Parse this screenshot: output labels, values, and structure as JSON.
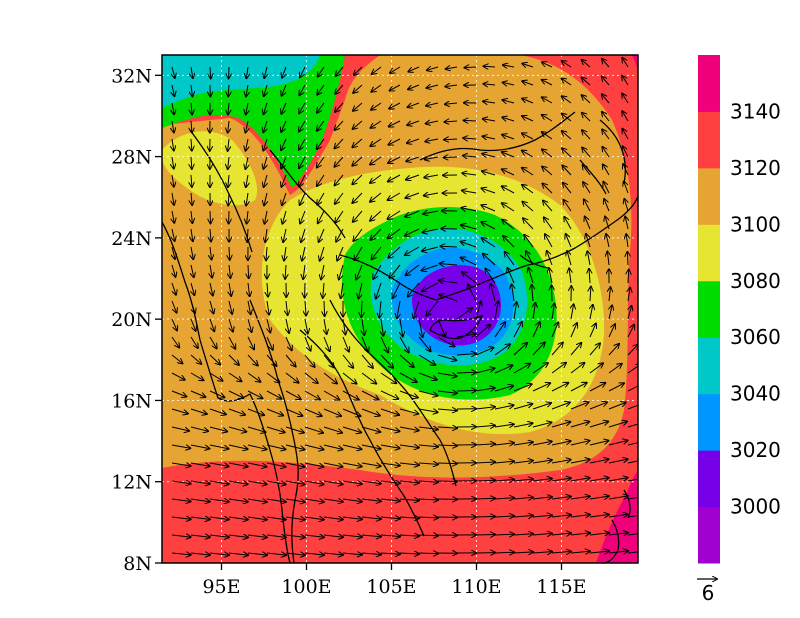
{
  "map": {
    "lat_ticks": [
      "8N",
      "12N",
      "16N",
      "20N",
      "24N",
      "28N",
      "32N"
    ],
    "lon_ticks": [
      "95E",
      "100E",
      "105E",
      "110E",
      "115E"
    ],
    "extent": {
      "lon": [
        91.5,
        119.5
      ],
      "lat": [
        8,
        33
      ]
    },
    "grid": true,
    "field": "geopotential height contours with wind vectors",
    "cyclone_center": {
      "lon": 108.6,
      "lat": 20.3,
      "min_height": 2990
    },
    "reference_vector": {
      "label": "6"
    }
  },
  "colorbar": {
    "levels": [
      3000,
      3020,
      3040,
      3060,
      3080,
      3100,
      3120,
      3140
    ],
    "labels": [
      "3000",
      "3020",
      "3040",
      "3060",
      "3080",
      "3100",
      "3120",
      "3140"
    ],
    "colors": [
      "#a000d0",
      "#7800e8",
      "#0096ff",
      "#00c8c8",
      "#00dc00",
      "#e6e632",
      "#e6a532",
      "#ff4040",
      "#f0007a"
    ]
  }
}
